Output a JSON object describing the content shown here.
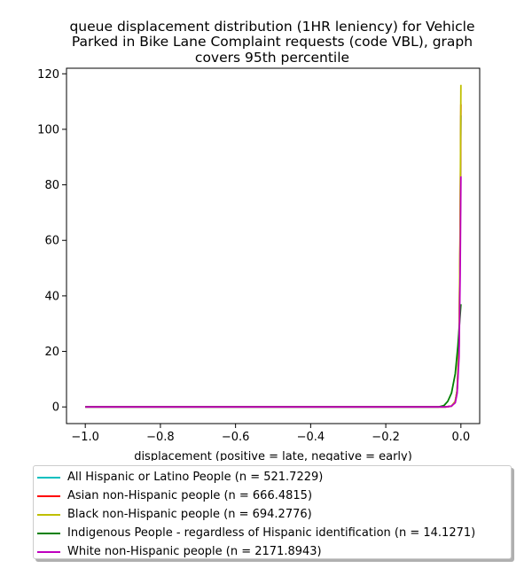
{
  "chart_data": {
    "type": "line",
    "title_lines": [
      "queue displacement distribution (1HR leniency) for Vehicle",
      "Parked in Bike Lane Complaint  requests (code VBL), graph",
      "covers 95th percentile"
    ],
    "xlabel": "displacement (positive = late, negative = early)",
    "ylabel": "",
    "xlim": [
      -1.05,
      0.05
    ],
    "ylim": [
      -6,
      122
    ],
    "xticks": [
      -1.0,
      -0.8,
      -0.6,
      -0.4,
      -0.2,
      0.0
    ],
    "xtick_labels": [
      "−1.0",
      "−0.8",
      "−0.6",
      "−0.4",
      "−0.2",
      "0.0"
    ],
    "yticks": [
      0,
      20,
      40,
      60,
      80,
      100,
      120
    ],
    "ytick_labels": [
      "0",
      "20",
      "40",
      "60",
      "80",
      "100",
      "120"
    ],
    "legend_position": "below-plot",
    "grid": false,
    "series": [
      {
        "name": "All Hispanic or Latino People (n = 521.7229)",
        "color": "#00bfbf",
        "x": [
          -1.0,
          -0.5,
          -0.1,
          -0.04,
          -0.025,
          -0.015,
          -0.01,
          -0.005,
          -0.002,
          0.0
        ],
        "y": [
          0,
          0,
          0,
          0,
          0.3,
          2,
          6,
          22,
          60,
          105
        ]
      },
      {
        "name": "Asian non-Hispanic people (n = 666.4815)",
        "color": "#ff0000",
        "x": [
          -1.0,
          -0.5,
          -0.1,
          -0.04,
          -0.025,
          -0.015,
          -0.01,
          -0.005,
          -0.002,
          0.0
        ],
        "y": [
          0,
          0,
          0,
          0,
          0.3,
          2,
          6,
          22,
          62,
          109
        ]
      },
      {
        "name": "Black non-Hispanic people (n = 694.2776)",
        "color": "#bfbf00",
        "x": [
          -1.0,
          -0.5,
          -0.1,
          -0.04,
          -0.025,
          -0.015,
          -0.01,
          -0.005,
          -0.002,
          0.0
        ],
        "y": [
          0,
          0,
          0,
          0,
          0.3,
          2,
          6,
          24,
          66,
          116
        ]
      },
      {
        "name": "Indigenous People - regardless of Hispanic identification (n = 14.1271)",
        "color": "#008000",
        "x": [
          -1.0,
          -0.5,
          -0.1,
          -0.06,
          -0.045,
          -0.035,
          -0.025,
          -0.015,
          -0.008,
          0.0
        ],
        "y": [
          0,
          0,
          0,
          0,
          0.5,
          2,
          5,
          12,
          22,
          37
        ]
      },
      {
        "name": "White non-Hispanic people (n = 2171.8943)",
        "color": "#bf00bf",
        "x": [
          -1.0,
          -0.5,
          -0.1,
          -0.04,
          -0.025,
          -0.015,
          -0.01,
          -0.005,
          -0.002,
          0.0
        ],
        "y": [
          0,
          0,
          0,
          0,
          0.3,
          1.5,
          5,
          18,
          48,
          83
        ]
      }
    ]
  }
}
